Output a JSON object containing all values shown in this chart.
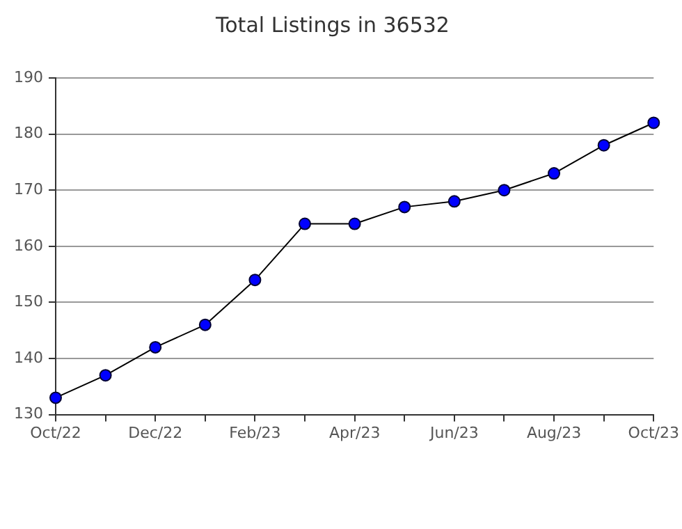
{
  "chart_data": {
    "type": "line",
    "title": "Total Listings in 36532",
    "categories": [
      "Oct/22",
      null,
      "Dec/22",
      null,
      "Feb/23",
      null,
      "Apr/23",
      null,
      "Jun/23",
      null,
      "Aug/23",
      null,
      "Oct/23"
    ],
    "series": [
      {
        "color": "#0000ff",
        "values": [
          133,
          137,
          142,
          146,
          154,
          164,
          164,
          167,
          168,
          170,
          173,
          178,
          182
        ]
      }
    ],
    "ylim": [
      130,
      190
    ],
    "yticks": [
      130,
      140,
      150,
      160,
      170,
      180,
      190
    ],
    "grid": "y",
    "legend": false,
    "marker": "circle",
    "line_style": "solid"
  }
}
